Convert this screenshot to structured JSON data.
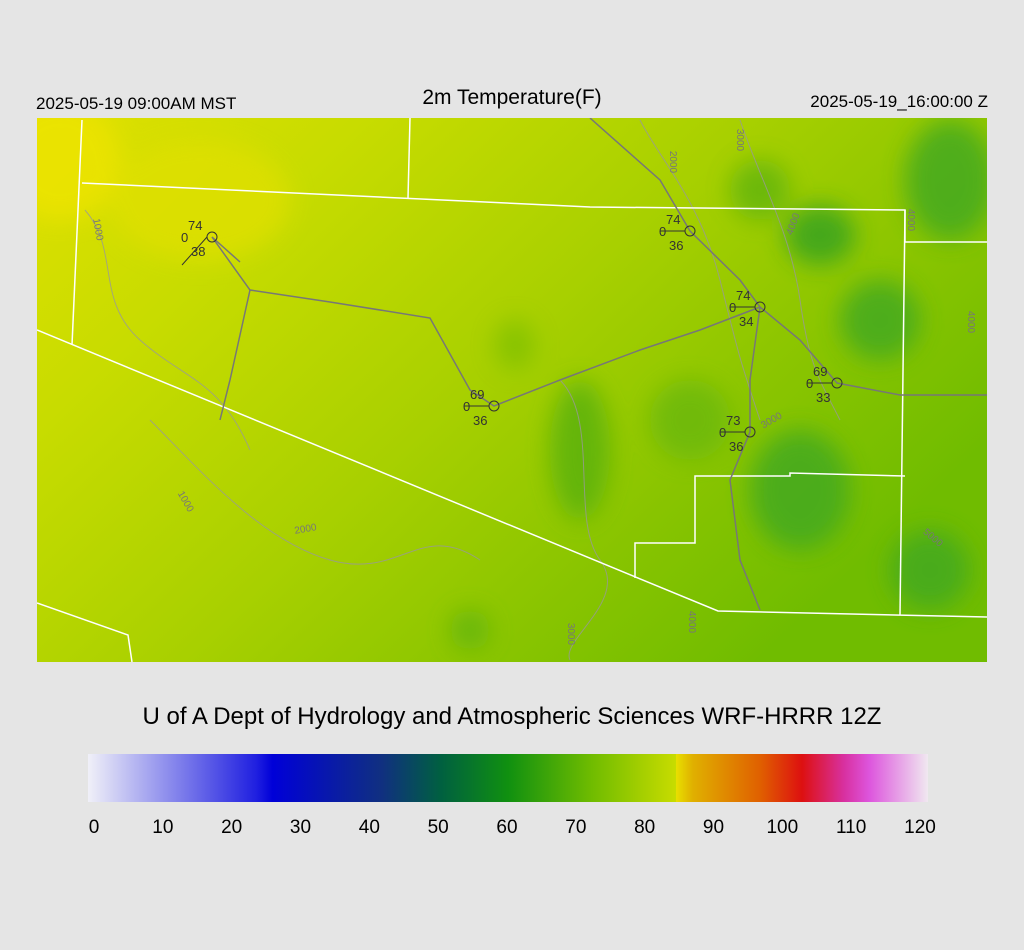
{
  "header": {
    "left": "2025-05-19 09:00AM MST",
    "title": "2m Temperature(F)",
    "right": "2025-05-19_16:00:00 Z"
  },
  "stations": [
    {
      "temp": 74,
      "wind": 0,
      "dew": 38
    },
    {
      "temp": 74,
      "wind": 0,
      "dew": 36
    },
    {
      "temp": 74,
      "wind": 0,
      "dew": 34
    },
    {
      "temp": 69,
      "wind": 0,
      "dew": 33
    },
    {
      "temp": 69,
      "wind": 0,
      "dew": 36
    },
    {
      "temp": 73,
      "wind": 0,
      "dew": 36
    }
  ],
  "contour_labels": [
    "1000",
    "1000",
    "2000",
    "2000",
    "3000",
    "4000",
    "4000",
    "4000",
    "3000",
    "5000",
    "3000",
    "4000"
  ],
  "credit": "U of A Dept of Hydrology and Atmospheric Sciences WRF-HRRR 12Z",
  "colorbar": {
    "lim": [
      0,
      120
    ],
    "ticks": [
      0,
      10,
      20,
      30,
      40,
      50,
      60,
      70,
      80,
      90,
      100,
      110,
      120
    ]
  }
}
